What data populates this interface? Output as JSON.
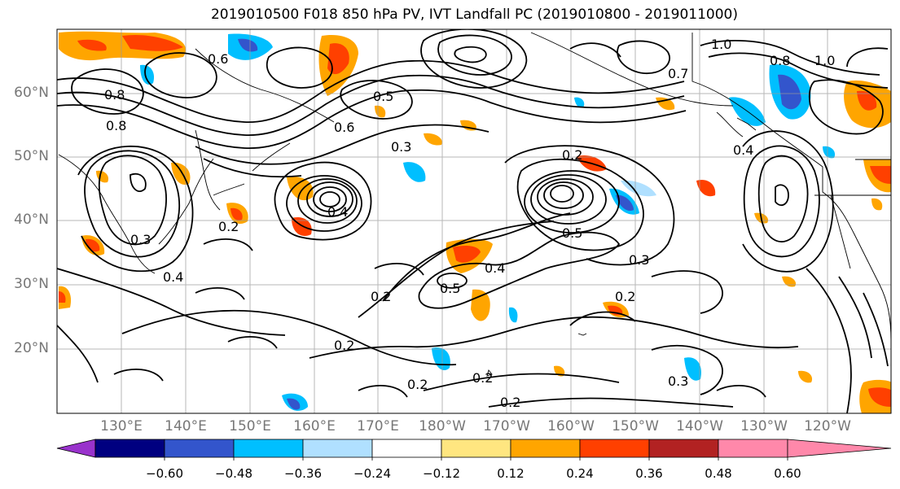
{
  "title": "2019010500 F018 850 hPa PV, IVT Landfall PC (2019010800 - 2019011000)",
  "latitude_labels": [
    "60°N",
    "50°N",
    "40°N",
    "30°N",
    "20°N"
  ],
  "longitude_labels": [
    "130°E",
    "140°E",
    "150°E",
    "160°E",
    "170°E",
    "180°W",
    "170°W",
    "160°W",
    "150°W",
    "140°W",
    "130°W",
    "120°W"
  ],
  "colorbar": {
    "colors": [
      "#9933cc",
      "#000080",
      "#3355cc",
      "#00bfff",
      "#b0e0ff",
      "#ffffff",
      "#ffe680",
      "#ffa500",
      "#ff4000",
      "#b22222",
      "#ff88aa"
    ],
    "tick_labels": [
      "−0.60",
      "−0.48",
      "−0.36",
      "−0.24",
      "−0.12",
      "0.12",
      "0.24",
      "0.36",
      "0.48",
      "0.60"
    ]
  },
  "contour_labels": [
    "0.2",
    "0.2",
    "0.2",
    "0.2",
    "0.2",
    "0.2",
    "0.2",
    "0.2",
    "0.3",
    "0.3",
    "0.3",
    "0.3",
    "0.4",
    "0.4",
    "0.4",
    "0.5",
    "0.5",
    "0.5",
    "0.6",
    "0.6",
    "0.7",
    "0.8",
    "0.8",
    "0.8",
    "1.0",
    "1.0",
    "0.4"
  ]
}
